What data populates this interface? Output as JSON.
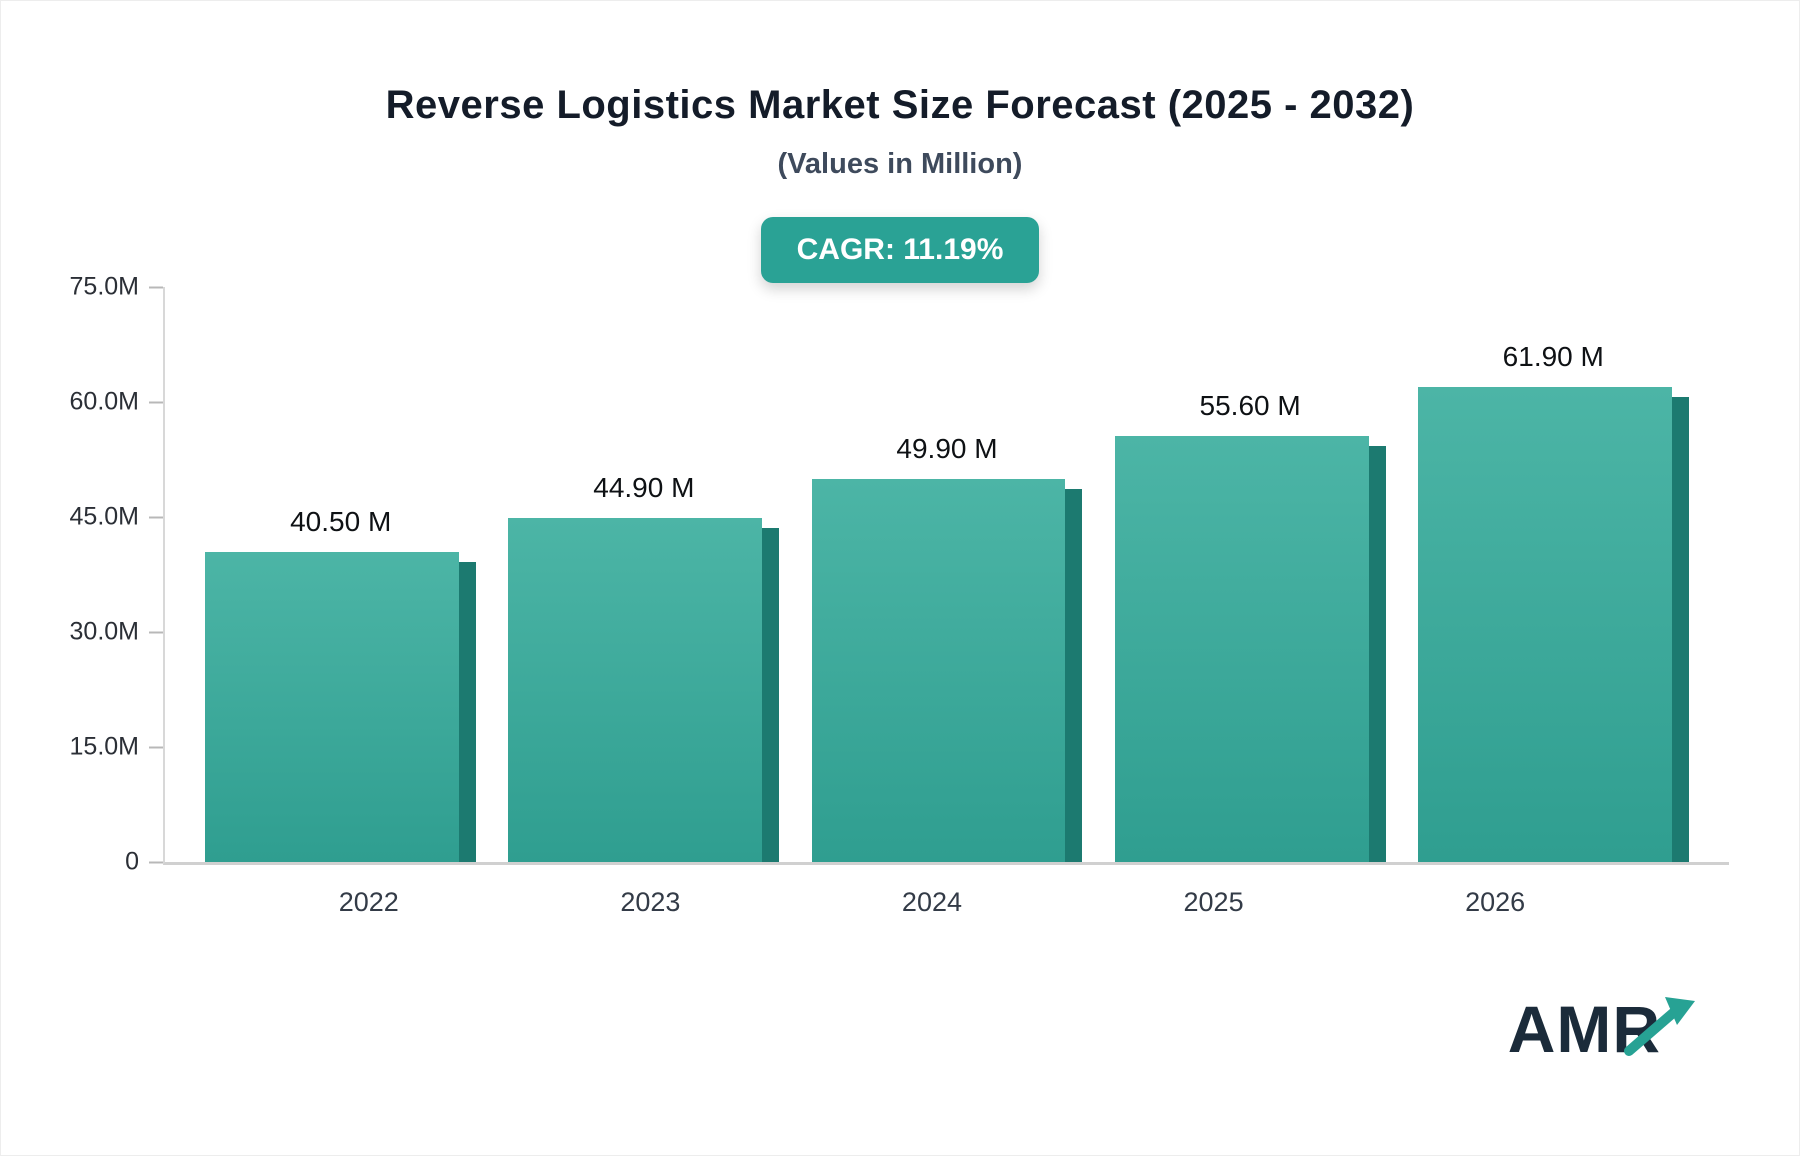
{
  "header": {
    "title": "Reverse Logistics Market Size Forecast (2025 - 2032)",
    "subtitle": "(Values in Million)",
    "cagr_badge": "CAGR: 11.19%"
  },
  "logo": {
    "text": "AMR"
  },
  "colors": {
    "bar_teal_top": "#4cb5a6",
    "bar_teal_bottom": "#2f9e90",
    "bar_side_shadow": "#1c7a70",
    "badge_background": "#2aa295",
    "badge_text": "#ffffff",
    "title_text": "#141c29",
    "logo_navy": "#1b2b3a"
  },
  "chart_data": {
    "type": "bar",
    "title": "Reverse Logistics Market Size Forecast (2025 - 2032)",
    "subtitle": "(Values in Million)",
    "categories": [
      "2022",
      "2023",
      "2024",
      "2025",
      "2026"
    ],
    "values": [
      40.5,
      44.9,
      49.9,
      55.6,
      61.9
    ],
    "value_labels": [
      "40.50 M",
      "44.90 M",
      "49.90 M",
      "55.60 M",
      "61.90 M"
    ],
    "annotation": "CAGR: 11.19%",
    "xlabel": "",
    "ylabel": "",
    "ylim": [
      0,
      75
    ],
    "yticks": [
      0,
      15,
      30,
      45,
      60,
      75
    ],
    "ytick_labels": [
      "0",
      "15.0M",
      "30.0M",
      "45.0M",
      "60.0M",
      "75.0M"
    ],
    "grid": false,
    "legend": false,
    "unit": "Million"
  }
}
